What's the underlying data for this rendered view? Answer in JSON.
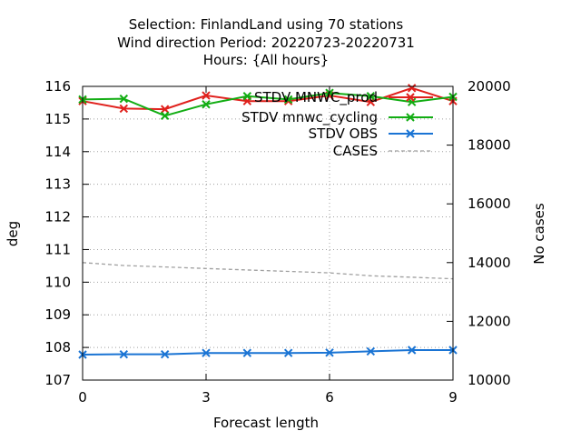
{
  "chart_data": {
    "type": "line",
    "title": {
      "line1": "Selection: FinlandLand using    70 stations",
      "line2": "Wind direction   Period: 20220723-20220731",
      "line3": "Hours: {All hours}"
    },
    "xlabel": "Forecast length",
    "ylabel": "deg",
    "y2label": "No cases",
    "xlim": [
      0,
      9
    ],
    "ylim": [
      107,
      116
    ],
    "y2lim": [
      10000,
      20000
    ],
    "xticks": [
      0,
      3,
      6,
      9
    ],
    "yticks": [
      107,
      108,
      109,
      110,
      111,
      112,
      113,
      114,
      115,
      116
    ],
    "y2ticks": [
      10000,
      12000,
      14000,
      16000,
      18000,
      20000
    ],
    "grid": true,
    "legend_position": "top-right",
    "x": [
      0,
      1,
      2,
      3,
      4,
      5,
      6,
      7,
      8,
      9
    ],
    "series": [
      {
        "name": "STDV MNWC_prod",
        "color": "#e0201c",
        "marker": "x",
        "axis": "y",
        "values": [
          115.55,
          115.32,
          115.3,
          115.72,
          115.55,
          115.55,
          115.72,
          115.52,
          115.95,
          115.55
        ]
      },
      {
        "name": "STDV mnwc_cycling",
        "color": "#12ad13",
        "marker": "x",
        "axis": "y",
        "values": [
          115.6,
          115.62,
          115.1,
          115.45,
          115.7,
          115.6,
          115.8,
          115.7,
          115.52,
          115.68
        ]
      },
      {
        "name": "STDV OBS",
        "color": "#1a74d4",
        "marker": "x",
        "axis": "y",
        "values": [
          107.78,
          107.79,
          107.79,
          107.83,
          107.83,
          107.83,
          107.84,
          107.88,
          107.92,
          107.92
        ]
      },
      {
        "name": "CASES",
        "color": "#a0a0a0",
        "marker": "none",
        "dash": true,
        "axis": "y2",
        "values": [
          14000,
          13900,
          13850,
          13800,
          13750,
          13700,
          13650,
          13550,
          13500,
          13450
        ]
      }
    ]
  }
}
